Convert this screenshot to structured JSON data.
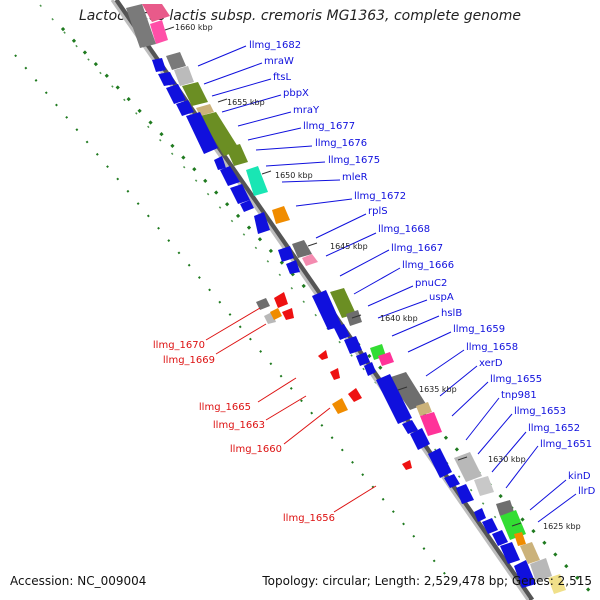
{
  "title": "Lactococcus lactis subsp. cremoris MG1363, complete genome",
  "footer": {
    "accession": "Accession: NC_009004",
    "topology": "Topology: circular; Length: 2,529,478 bp; Genes: 2,515"
  },
  "colors": {
    "backbone": "#8c8c8c",
    "gc_skew_dots": "#1f7a1f",
    "forward_genes": "#1010dd",
    "reverse_label": "#dd1111",
    "label_line_blue": "#1010dd",
    "label_line_red": "#dd1111"
  },
  "kbp_markers": [
    "1660 kbp",
    "1655 kbp",
    "1650 kbp",
    "1645 kbp",
    "1640 kbp",
    "1635 kbp",
    "1630 kbp",
    "1625 kbp"
  ],
  "gene_labels_forward": [
    "llmg_1682",
    "mraW",
    "ftsL",
    "pbpX",
    "mraY",
    "llmg_1677",
    "llmg_1676",
    "llmg_1675",
    "mleR",
    "llmg_1672",
    "rplS",
    "llmg_1668",
    "llmg_1667",
    "llmg_1666",
    "pnuC2",
    "uspA",
    "hslB",
    "llmg_1659",
    "llmg_1658",
    "xerD",
    "llmg_1655",
    "tnp981",
    "llmg_1653",
    "llmg_1652",
    "llmg_1651",
    "kinD",
    "llrD"
  ],
  "gene_labels_reverse": [
    "llmg_1670",
    "llmg_1669",
    "llmg_1665",
    "llmg_1663",
    "llmg_1660",
    "llmg_1656"
  ]
}
